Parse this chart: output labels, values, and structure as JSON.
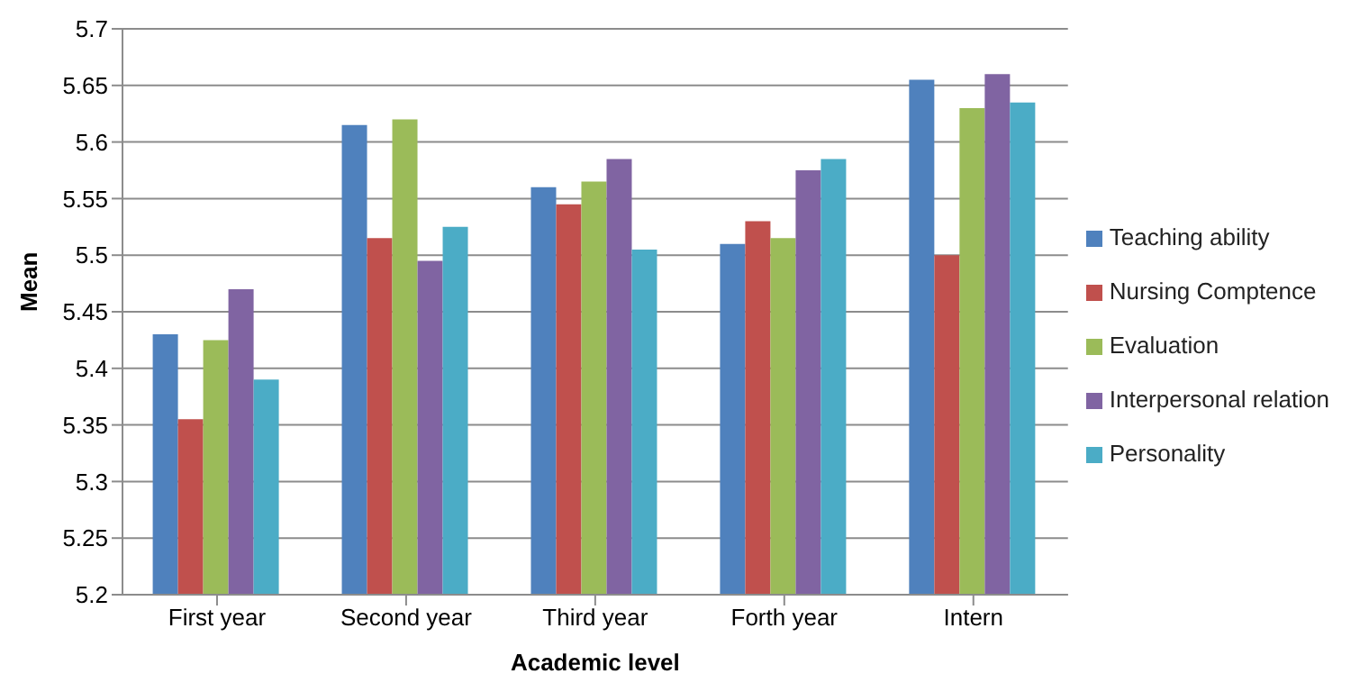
{
  "chart_data": {
    "type": "bar",
    "xlabel": "Academic level",
    "ylabel": "Mean",
    "categories": [
      "First year",
      "Second year",
      "Third year",
      "Forth year",
      "Intern"
    ],
    "series": [
      {
        "name": "Teaching ability",
        "color": "#4f81bd",
        "values": [
          5.43,
          5.615,
          5.56,
          5.51,
          5.655
        ]
      },
      {
        "name": "Nursing Comptence",
        "color": "#c0504d",
        "values": [
          5.355,
          5.515,
          5.545,
          5.53,
          5.5
        ]
      },
      {
        "name": "Evaluation",
        "color": "#9bbb59",
        "values": [
          5.425,
          5.62,
          5.565,
          5.515,
          5.63
        ]
      },
      {
        "name": "Interpersonal relation",
        "color": "#8064a2",
        "values": [
          5.47,
          5.495,
          5.585,
          5.575,
          5.66
        ]
      },
      {
        "name": "Personality",
        "color": "#4bacc6",
        "values": [
          5.39,
          5.525,
          5.505,
          5.585,
          5.635
        ]
      }
    ],
    "ylim": [
      5.2,
      5.7
    ],
    "yticks": [
      5.2,
      5.25,
      5.3,
      5.35,
      5.4,
      5.45,
      5.5,
      5.55,
      5.6,
      5.65,
      5.7
    ],
    "grid": "y",
    "legend": "right"
  }
}
